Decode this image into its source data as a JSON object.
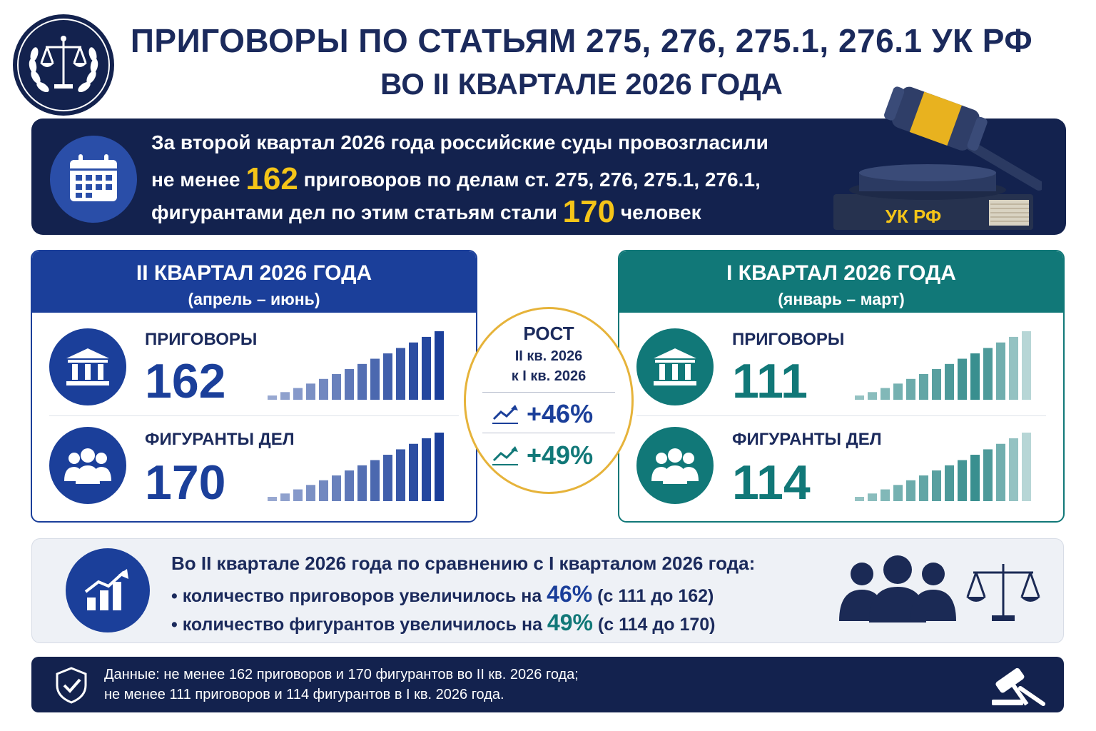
{
  "header": {
    "title_line1": "ПРИГОВОРЫ ПО СТАТЬЯМ 275, 276, 275.1, 276.1 УК РФ",
    "title_line2": "ВО II КВАРТАЛЕ 2026 ГОДА",
    "emblem_icon": "scales-laurel-icon"
  },
  "intro": {
    "line1": "За второй квартал 2026 года российские суды провозгласили",
    "line2_pre": "не менее ",
    "line2_num": "162",
    "line2_post": " приговоров по делам ст. 275, 276, 275.1, 276.1,",
    "line3_pre": "фигурантами дел по этим статьям стали ",
    "line3_num": "170",
    "line3_post": " человек",
    "book_label": "УК РФ",
    "icon": "calendar-icon"
  },
  "q2": {
    "title": "II КВАРТАЛ 2026 ГОДА",
    "subtitle": "(апрель – июнь)",
    "verdicts_label": "ПРИГОВОРЫ",
    "verdicts_value": "162",
    "defendants_label": "ФИГУРАНТЫ ДЕЛ",
    "defendants_value": "170",
    "color": "#1b3f9a"
  },
  "q1": {
    "title": "I КВАРТАЛ 2026 ГОДА",
    "subtitle": "(январь – март)",
    "verdicts_label": "ПРИГОВОРЫ",
    "verdicts_value": "111",
    "defendants_label": "ФИГУРАНТЫ ДЕЛ",
    "defendants_value": "114",
    "color": "#117878"
  },
  "growth": {
    "title": "РОСТ",
    "sub1": "II кв. 2026",
    "sub2": "к I кв. 2026",
    "verdicts_pct": "+46%",
    "defendants_pct": "+49%"
  },
  "compare": {
    "head": "Во II квартале 2026 года по сравнению с I кварталом 2026 года:",
    "l1_pre": "• количество приговоров увеличилось на ",
    "l1_pct": "46%",
    "l1_post": " (с 111 до 162)",
    "l2_pre": "• количество фигурантов увеличилось на ",
    "l2_pct": "49%",
    "l2_post": " (с 114 до 170)",
    "icon": "growth-chart-icon"
  },
  "footer": {
    "line1": "Данные: не менее 162 приговоров и 170 фигурантов во II кв. 2026 года;",
    "line2": "не менее 111 приговоров и 114 фигурантов в I кв. 2026 года.",
    "icon": "shield-check-icon"
  },
  "colors": {
    "navy": "#13224e",
    "blue": "#1b3f9a",
    "teal": "#117878",
    "gold": "#f5c518"
  }
}
